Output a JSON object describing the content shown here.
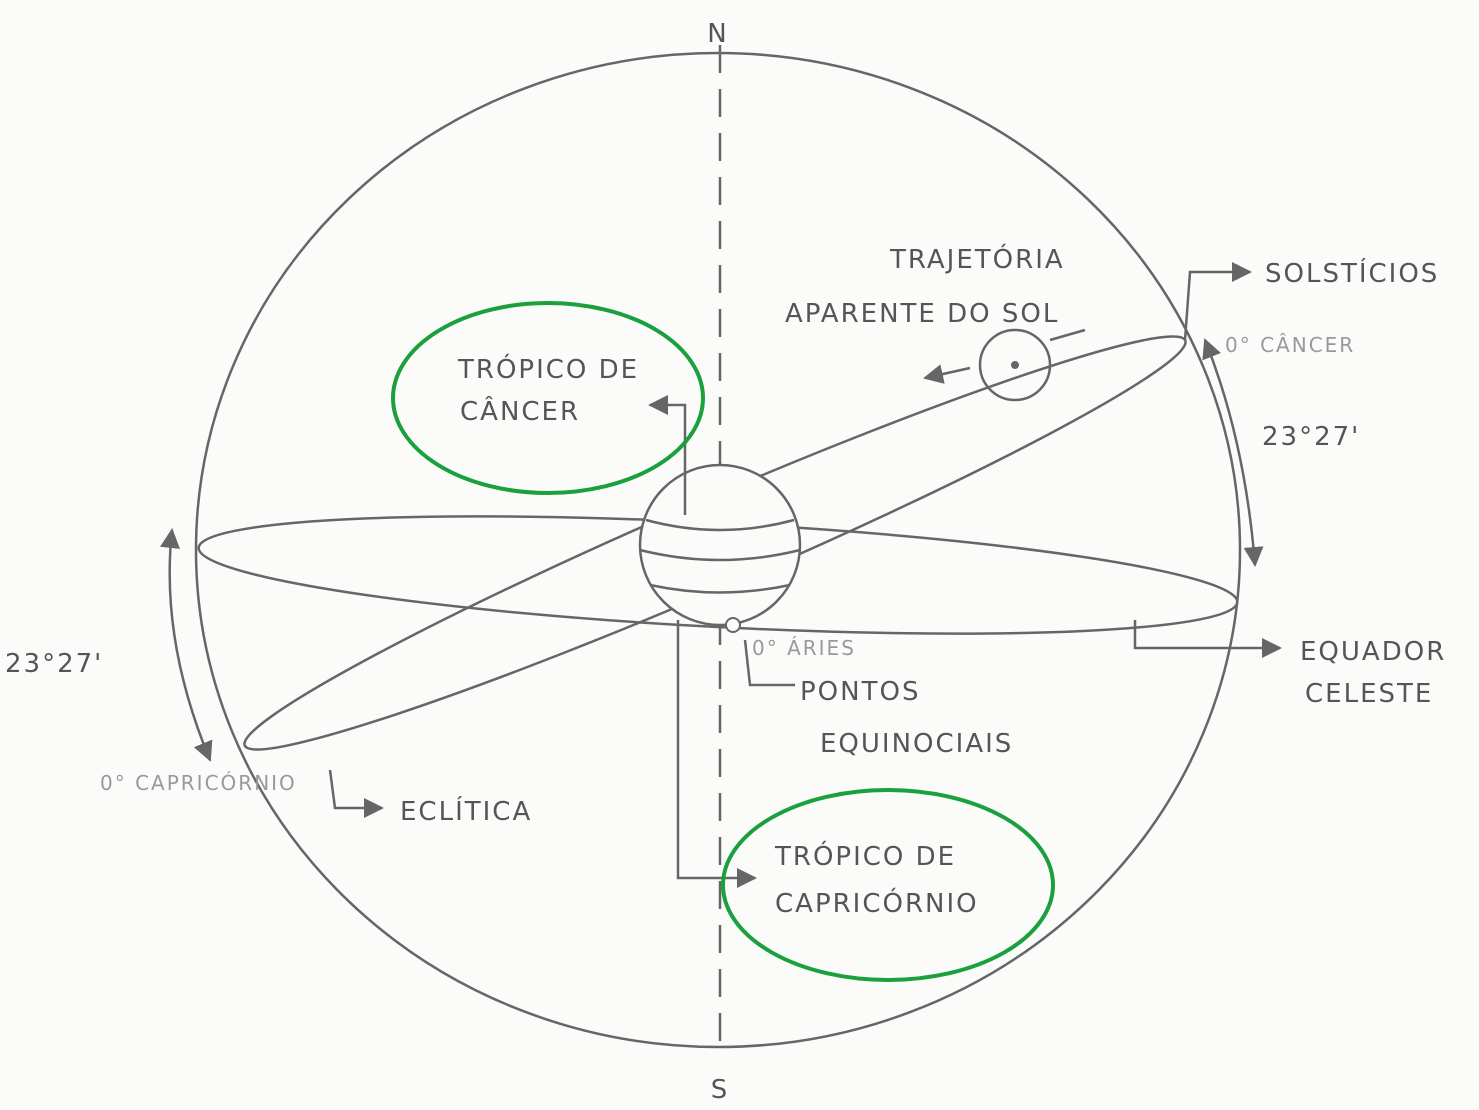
{
  "axis": {
    "north": "N",
    "south": "S"
  },
  "sun_path": {
    "line1": "TRAJETÓRIA",
    "line2": "APARENTE DO SOL"
  },
  "solstices": {
    "label": "SOLSTÍCIOS",
    "point": "0° CÂNCER"
  },
  "tilt_right": "23°27'",
  "tilt_left": "23°27'",
  "tropic_cancer": {
    "line1": "TRÓPICO DE",
    "line2": "CÂNCER"
  },
  "celestial_equator": {
    "line1": "EQUADOR",
    "line2": "CELESTE"
  },
  "equinox": {
    "point": "0° ÁRIES",
    "line1": "PONTOS",
    "line2": "EQUINOCIAIS"
  },
  "capricorn_point": "0° CAPRICÓRNIO",
  "ecliptic": "ECLÍTICA",
  "tropic_capricorn": {
    "line1": "TRÓPICO DE",
    "line2": "CAPRICÓRNIO"
  }
}
